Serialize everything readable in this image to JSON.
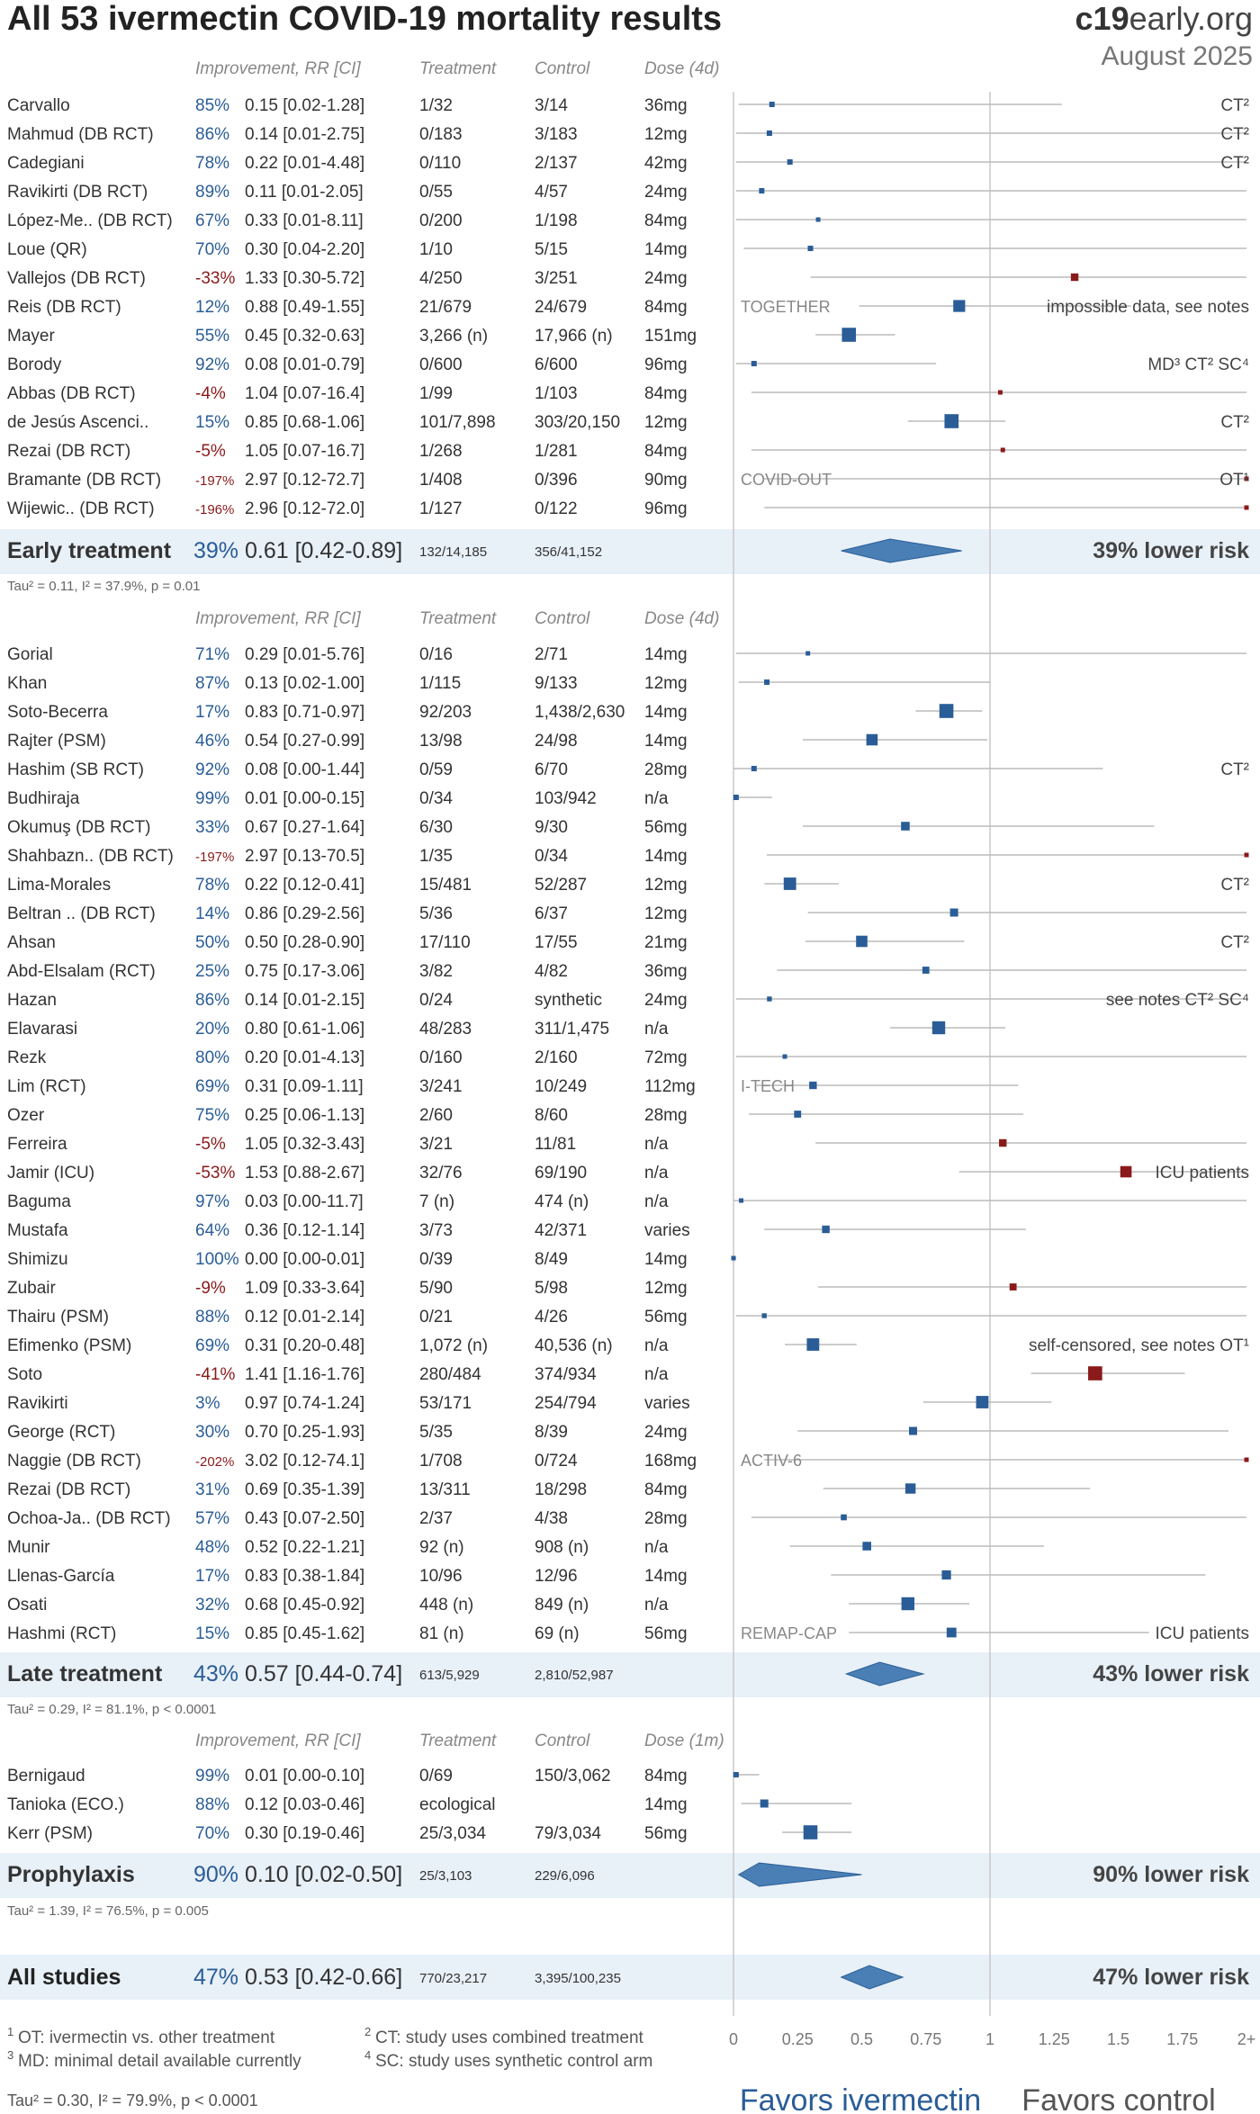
{
  "header": {
    "title": "All 53 ivermectin COVID-19 mortality results",
    "brand_prefix": "c19",
    "brand_suffix": "early.org",
    "date": "August 2025"
  },
  "columns": {
    "improvement": "Improvement, RR [CI]",
    "treatment": "Treatment",
    "control": "Control"
  },
  "colors": {
    "positive": "#2a5d97",
    "negative": "#8b1a1a",
    "summary_fill": "#4a7fb5",
    "band": "#e8f0f8"
  },
  "chart_data": {
    "type": "forest",
    "xlabel": "",
    "ticks": [
      "0",
      "0.25",
      "0.5",
      "0.75",
      "1",
      "1.25",
      "1.5",
      "1.75",
      "2+"
    ],
    "xlim": [
      0,
      2
    ],
    "favors_left": "Favors ivermectin",
    "favors_right": "Favors control",
    "footnotes": [
      "OT: ivermectin vs. other treatment",
      "CT: study uses combined treatment",
      "MD: minimal detail available currently",
      "SC: study uses synthetic control arm"
    ],
    "overall_stats": "Tau² = 0.30, I² = 79.9%, p < 0.0001",
    "groups": [
      {
        "dose_header": "Dose (4d)",
        "studies": [
          {
            "name": "Carvallo",
            "imp": "85%",
            "rr": 0.15,
            "ci": "[0.02-1.28]",
            "lo": 0.02,
            "hi": 1.28,
            "t": "1/32",
            "c": "3/14",
            "dose": "36mg",
            "w": 1,
            "note": "CT²"
          },
          {
            "name": "Mahmud (DB RCT)",
            "imp": "86%",
            "rr": 0.14,
            "ci": "[0.01-2.75]",
            "lo": 0.01,
            "hi": 2.75,
            "t": "0/183",
            "c": "3/183",
            "dose": "12mg",
            "w": 1,
            "note": "CT²"
          },
          {
            "name": "Cadegiani",
            "imp": "78%",
            "rr": 0.22,
            "ci": "[0.01-4.48]",
            "lo": 0.01,
            "hi": 4.48,
            "t": "0/110",
            "c": "2/137",
            "dose": "42mg",
            "w": 1,
            "note": "CT²"
          },
          {
            "name": "Ravikirti (DB RCT)",
            "imp": "89%",
            "rr": 0.11,
            "ci": "[0.01-2.05]",
            "lo": 0.01,
            "hi": 2.05,
            "t": "0/55",
            "c": "4/57",
            "dose": "24mg",
            "w": 1
          },
          {
            "name": "López-Me.. (DB RCT)",
            "imp": "67%",
            "rr": 0.33,
            "ci": "[0.01-8.11]",
            "lo": 0.01,
            "hi": 8.11,
            "t": "0/200",
            "c": "1/198",
            "dose": "84mg",
            "w": 0.8
          },
          {
            "name": "Loue (QR)",
            "imp": "70%",
            "rr": 0.3,
            "ci": "[0.04-2.20]",
            "lo": 0.04,
            "hi": 2.2,
            "t": "1/10",
            "c": "5/15",
            "dose": "14mg",
            "w": 1
          },
          {
            "name": "Vallejos (DB RCT)",
            "imp": "-33%",
            "rr": 1.33,
            "ci": "[0.30-5.72]",
            "lo": 0.3,
            "hi": 5.72,
            "t": "4/250",
            "c": "3/251",
            "dose": "24mg",
            "w": 1.4
          },
          {
            "name": "Reis (DB RCT)",
            "imp": "12%",
            "rr": 0.88,
            "ci": "[0.49-1.55]",
            "lo": 0.49,
            "hi": 1.55,
            "t": "21/679",
            "c": "24/679",
            "dose": "84mg",
            "w": 2.2,
            "trial": "TOGETHER",
            "note": "impossible data, see notes"
          },
          {
            "name": "Mayer",
            "imp": "55%",
            "rr": 0.45,
            "ci": "[0.32-0.63]",
            "lo": 0.32,
            "hi": 0.63,
            "t": "3,266 (n)",
            "c": "17,966 (n)",
            "dose": "151mg",
            "w": 2.6
          },
          {
            "name": "Borody",
            "imp": "92%",
            "rr": 0.08,
            "ci": "[0.01-0.79]",
            "lo": 0.01,
            "hi": 0.79,
            "t": "0/600",
            "c": "6/600",
            "dose": "96mg",
            "w": 1,
            "note": "MD³ CT² SC⁴"
          },
          {
            "name": "Abbas (DB RCT)",
            "imp": "-4%",
            "rr": 1.04,
            "ci": "[0.07-16.4]",
            "lo": 0.07,
            "hi": 16.4,
            "t": "1/99",
            "c": "1/103",
            "dose": "84mg",
            "w": 0.8
          },
          {
            "name": "de Jesús Ascenci..",
            "imp": "15%",
            "rr": 0.85,
            "ci": "[0.68-1.06]",
            "lo": 0.68,
            "hi": 1.06,
            "t": "101/7,898",
            "c": "303/20,150",
            "dose": "12mg",
            "w": 2.6,
            "note": "CT²"
          },
          {
            "name": "Rezai (DB RCT)",
            "imp": "-5%",
            "rr": 1.05,
            "ci": "[0.07-16.7]",
            "lo": 0.07,
            "hi": 16.7,
            "t": "1/268",
            "c": "1/281",
            "dose": "84mg",
            "w": 0.8
          },
          {
            "name": "Bramante (DB RCT)",
            "imp": "-197%",
            "rr": 2.97,
            "ci": "[0.12-72.7]",
            "lo": 0.12,
            "hi": 72.7,
            "t": "1/408",
            "c": "0/396",
            "dose": "90mg",
            "w": 0.8,
            "trial": "COVID-OUT",
            "note": "OT¹"
          },
          {
            "name": "Wijewic.. (DB RCT)",
            "imp": "-196%",
            "rr": 2.96,
            "ci": "[0.12-72.0]",
            "lo": 0.12,
            "hi": 72.0,
            "t": "1/127",
            "c": "0/122",
            "dose": "96mg",
            "w": 0.8
          }
        ],
        "summary": {
          "label": "Early treatment",
          "imp": "39%",
          "rr": 0.61,
          "ci": "[0.42-0.89]",
          "lo": 0.42,
          "hi": 0.89,
          "t": "132/14,185",
          "c": "356/41,152",
          "right": "39% lower risk"
        },
        "stats": "Tau² = 0.11, I² = 37.9%, p = 0.01"
      },
      {
        "dose_header": "Dose (4d)",
        "studies": [
          {
            "name": "Gorial",
            "imp": "71%",
            "rr": 0.29,
            "ci": "[0.01-5.76]",
            "lo": 0.01,
            "hi": 5.76,
            "t": "0/16",
            "c": "2/71",
            "dose": "14mg",
            "w": 0.8
          },
          {
            "name": "Khan",
            "imp": "87%",
            "rr": 0.13,
            "ci": "[0.02-1.00]",
            "lo": 0.02,
            "hi": 1.0,
            "t": "1/115",
            "c": "9/133",
            "dose": "12mg",
            "w": 1
          },
          {
            "name": "Soto-Becerra",
            "imp": "17%",
            "rr": 0.83,
            "ci": "[0.71-0.97]",
            "lo": 0.71,
            "hi": 0.97,
            "t": "92/203",
            "c": "1,438/2,630",
            "dose": "14mg",
            "w": 2.6
          },
          {
            "name": "Rajter (PSM)",
            "imp": "46%",
            "rr": 0.54,
            "ci": "[0.27-0.99]",
            "lo": 0.27,
            "hi": 0.99,
            "t": "13/98",
            "c": "24/98",
            "dose": "14mg",
            "w": 2.1
          },
          {
            "name": "Hashim (SB RCT)",
            "imp": "92%",
            "rr": 0.08,
            "ci": "[0.00-1.44]",
            "lo": 0.0,
            "hi": 1.44,
            "t": "0/59",
            "c": "6/70",
            "dose": "28mg",
            "w": 1,
            "note": "CT²"
          },
          {
            "name": "Budhiraja",
            "imp": "99%",
            "rr": 0.01,
            "ci": "[0.00-0.15]",
            "lo": 0.0,
            "hi": 0.15,
            "t": "0/34",
            "c": "103/942",
            "dose": "n/a",
            "w": 1
          },
          {
            "name": "Okumuş (DB RCT)",
            "imp": "33%",
            "rr": 0.67,
            "ci": "[0.27-1.64]",
            "lo": 0.27,
            "hi": 1.64,
            "t": "6/30",
            "c": "9/30",
            "dose": "56mg",
            "w": 1.6
          },
          {
            "name": "Shahbazn.. (DB RCT)",
            "imp": "-197%",
            "rr": 2.97,
            "ci": "[0.13-70.5]",
            "lo": 0.13,
            "hi": 70.5,
            "t": "1/35",
            "c": "0/34",
            "dose": "14mg",
            "w": 0.8
          },
          {
            "name": "Lima-Morales",
            "imp": "78%",
            "rr": 0.22,
            "ci": "[0.12-0.41]",
            "lo": 0.12,
            "hi": 0.41,
            "t": "15/481",
            "c": "52/287",
            "dose": "12mg",
            "w": 2.3,
            "note": "CT²"
          },
          {
            "name": "Beltran .. (DB RCT)",
            "imp": "14%",
            "rr": 0.86,
            "ci": "[0.29-2.56]",
            "lo": 0.29,
            "hi": 2.56,
            "t": "5/36",
            "c": "6/37",
            "dose": "12mg",
            "w": 1.5
          },
          {
            "name": "Ahsan",
            "imp": "50%",
            "rr": 0.5,
            "ci": "[0.28-0.90]",
            "lo": 0.28,
            "hi": 0.9,
            "t": "17/110",
            "c": "17/55",
            "dose": "21mg",
            "w": 2.1,
            "note": "CT²"
          },
          {
            "name": "Abd-Elsalam (RCT)",
            "imp": "25%",
            "rr": 0.75,
            "ci": "[0.17-3.06]",
            "lo": 0.17,
            "hi": 3.06,
            "t": "3/82",
            "c": "4/82",
            "dose": "36mg",
            "w": 1.3
          },
          {
            "name": "Hazan",
            "imp": "86%",
            "rr": 0.14,
            "ci": "[0.01-2.15]",
            "lo": 0.01,
            "hi": 2.15,
            "t": "0/24",
            "c": "synthetic",
            "dose": "24mg",
            "w": 0.9,
            "note": "see notes CT² SC⁴"
          },
          {
            "name": "Elavarasi",
            "imp": "20%",
            "rr": 0.8,
            "ci": "[0.61-1.06]",
            "lo": 0.61,
            "hi": 1.06,
            "t": "48/283",
            "c": "311/1,475",
            "dose": "n/a",
            "w": 2.4
          },
          {
            "name": "Rezk",
            "imp": "80%",
            "rr": 0.2,
            "ci": "[0.01-4.13]",
            "lo": 0.01,
            "hi": 4.13,
            "t": "0/160",
            "c": "2/160",
            "dose": "72mg",
            "w": 0.8
          },
          {
            "name": "Lim (RCT)",
            "imp": "69%",
            "rr": 0.31,
            "ci": "[0.09-1.11]",
            "lo": 0.09,
            "hi": 1.11,
            "t": "3/241",
            "c": "10/249",
            "dose": "112mg",
            "w": 1.4,
            "trial": "I-TECH"
          },
          {
            "name": "Ozer",
            "imp": "75%",
            "rr": 0.25,
            "ci": "[0.06-1.13]",
            "lo": 0.06,
            "hi": 1.13,
            "t": "2/60",
            "c": "8/60",
            "dose": "28mg",
            "w": 1.3
          },
          {
            "name": "Ferreira",
            "imp": "-5%",
            "rr": 1.05,
            "ci": "[0.32-3.43]",
            "lo": 0.32,
            "hi": 3.43,
            "t": "3/21",
            "c": "11/81",
            "dose": "n/a",
            "w": 1.4
          },
          {
            "name": "Jamir (ICU)",
            "imp": "-53%",
            "rr": 1.53,
            "ci": "[0.88-2.67]",
            "lo": 0.88,
            "hi": 2.67,
            "t": "32/76",
            "c": "69/190",
            "dose": "n/a",
            "w": 2.1,
            "note": "ICU patients"
          },
          {
            "name": "Baguma",
            "imp": "97%",
            "rr": 0.03,
            "ci": "[0.00-11.7]",
            "lo": 0.0,
            "hi": 11.7,
            "t": "7 (n)",
            "c": "474 (n)",
            "dose": "n/a",
            "w": 0.7
          },
          {
            "name": "Mustafa",
            "imp": "64%",
            "rr": 0.36,
            "ci": "[0.12-1.14]",
            "lo": 0.12,
            "hi": 1.14,
            "t": "3/73",
            "c": "42/371",
            "dose": "varies",
            "w": 1.4
          },
          {
            "name": "Shimizu",
            "imp": "100%",
            "rr": 0.0,
            "ci": "[0.00-0.01]",
            "lo": 0.0,
            "hi": 0.01,
            "t": "0/39",
            "c": "8/49",
            "dose": "14mg",
            "w": 0.8
          },
          {
            "name": "Zubair",
            "imp": "-9%",
            "rr": 1.09,
            "ci": "[0.33-3.64]",
            "lo": 0.33,
            "hi": 3.64,
            "t": "5/90",
            "c": "5/98",
            "dose": "12mg",
            "w": 1.3
          },
          {
            "name": "Thairu (PSM)",
            "imp": "88%",
            "rr": 0.12,
            "ci": "[0.01-2.14]",
            "lo": 0.01,
            "hi": 2.14,
            "t": "0/21",
            "c": "4/26",
            "dose": "56mg",
            "w": 0.9
          },
          {
            "name": "Efimenko (PSM)",
            "imp": "69%",
            "rr": 0.31,
            "ci": "[0.20-0.48]",
            "lo": 0.2,
            "hi": 0.48,
            "t": "1,072 (n)",
            "c": "40,536 (n)",
            "dose": "n/a",
            "w": 2.3,
            "note": "self-censored, see notes OT¹"
          },
          {
            "name": "Soto",
            "imp": "-41%",
            "rr": 1.41,
            "ci": "[1.16-1.76]",
            "lo": 1.16,
            "hi": 1.76,
            "t": "280/484",
            "c": "374/934",
            "dose": "n/a",
            "w": 2.6
          },
          {
            "name": "Ravikirti",
            "imp": "3%",
            "rr": 0.97,
            "ci": "[0.74-1.24]",
            "lo": 0.74,
            "hi": 1.24,
            "t": "53/171",
            "c": "254/794",
            "dose": "varies",
            "w": 2.3
          },
          {
            "name": "George (RCT)",
            "imp": "30%",
            "rr": 0.7,
            "ci": "[0.25-1.93]",
            "lo": 0.25,
            "hi": 1.93,
            "t": "5/35",
            "c": "8/39",
            "dose": "24mg",
            "w": 1.5
          },
          {
            "name": "Naggie (DB RCT)",
            "imp": "-202%",
            "rr": 3.02,
            "ci": "[0.12-74.1]",
            "lo": 0.12,
            "hi": 74.1,
            "t": "1/708",
            "c": "0/724",
            "dose": "168mg",
            "w": 0.8,
            "trial": "ACTIV-6"
          },
          {
            "name": "Rezai (DB RCT)",
            "imp": "31%",
            "rr": 0.69,
            "ci": "[0.35-1.39]",
            "lo": 0.35,
            "hi": 1.39,
            "t": "13/311",
            "c": "18/298",
            "dose": "84mg",
            "w": 1.9
          },
          {
            "name": "Ochoa-Ja.. (DB RCT)",
            "imp": "57%",
            "rr": 0.43,
            "ci": "[0.07-2.50]",
            "lo": 0.07,
            "hi": 2.5,
            "t": "2/37",
            "c": "4/38",
            "dose": "28mg",
            "w": 1.1
          },
          {
            "name": "Munir",
            "imp": "48%",
            "rr": 0.52,
            "ci": "[0.22-1.21]",
            "lo": 0.22,
            "hi": 1.21,
            "t": "92 (n)",
            "c": "908 (n)",
            "dose": "n/a",
            "w": 1.6
          },
          {
            "name": "Llenas-García",
            "imp": "17%",
            "rr": 0.83,
            "ci": "[0.38-1.84]",
            "lo": 0.38,
            "hi": 1.84,
            "t": "10/96",
            "c": "12/96",
            "dose": "14mg",
            "w": 1.7
          },
          {
            "name": "Osati",
            "imp": "32%",
            "rr": 0.68,
            "ci": "[0.45-0.92]",
            "lo": 0.45,
            "hi": 0.92,
            "t": "448 (n)",
            "c": "849 (n)",
            "dose": "n/a",
            "w": 2.4
          },
          {
            "name": "Hashmi (RCT)",
            "imp": "15%",
            "rr": 0.85,
            "ci": "[0.45-1.62]",
            "lo": 0.45,
            "hi": 1.62,
            "t": "81 (n)",
            "c": "69 (n)",
            "dose": "56mg",
            "w": 1.8,
            "trial": "REMAP-CAP",
            "note": "ICU patients"
          }
        ],
        "summary": {
          "label": "Late treatment",
          "imp": "43%",
          "rr": 0.57,
          "ci": "[0.44-0.74]",
          "lo": 0.44,
          "hi": 0.74,
          "t": "613/5,929",
          "c": "2,810/52,987",
          "right": "43% lower risk"
        },
        "stats": "Tau² = 0.29, I² = 81.1%, p < 0.0001"
      },
      {
        "dose_header": "Dose (1m)",
        "studies": [
          {
            "name": "Bernigaud",
            "imp": "99%",
            "rr": 0.01,
            "ci": "[0.00-0.10]",
            "lo": 0.0,
            "hi": 0.1,
            "t": "0/69",
            "c": "150/3,062",
            "dose": "84mg",
            "w": 1
          },
          {
            "name": "Tanioka (ECO.)",
            "imp": "88%",
            "rr": 0.12,
            "ci": "[0.03-0.46]",
            "lo": 0.03,
            "hi": 0.46,
            "t": "ecological",
            "c": "",
            "dose": "14mg",
            "w": 1.5
          },
          {
            "name": "Kerr (PSM)",
            "imp": "70%",
            "rr": 0.3,
            "ci": "[0.19-0.46]",
            "lo": 0.19,
            "hi": 0.46,
            "t": "25/3,034",
            "c": "79/3,034",
            "dose": "56mg",
            "w": 2.6
          }
        ],
        "summary": {
          "label": "Prophylaxis",
          "imp": "90%",
          "rr": 0.1,
          "ci": "[0.02-0.50]",
          "lo": 0.02,
          "hi": 0.5,
          "t": "25/3,103",
          "c": "229/6,096",
          "right": "90% lower risk"
        },
        "stats": "Tau² = 1.39, I² = 76.5%, p = 0.005"
      }
    ],
    "overall": {
      "label": "All studies",
      "imp": "47%",
      "rr": 0.53,
      "ci": "[0.42-0.66]",
      "lo": 0.42,
      "hi": 0.66,
      "t": "770/23,217",
      "c": "3,395/100,235",
      "right": "47% lower risk"
    }
  }
}
